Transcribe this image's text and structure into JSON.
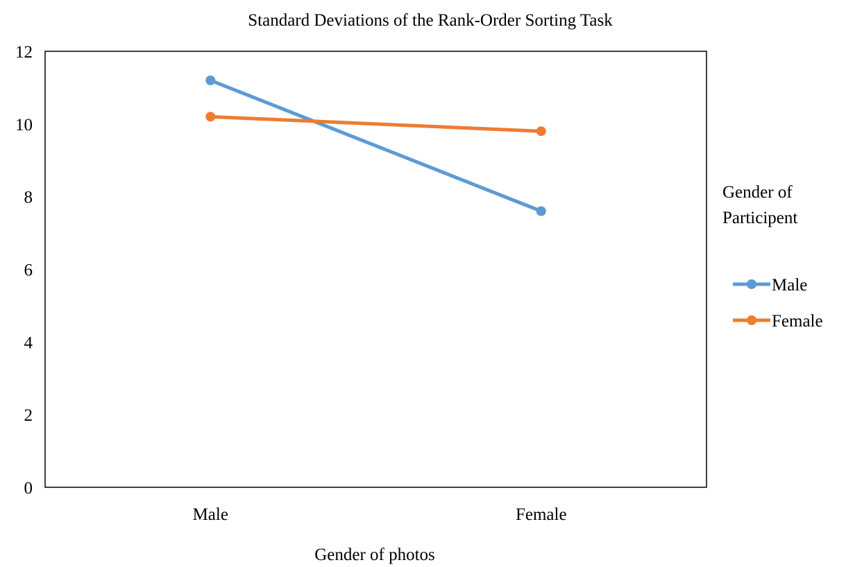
{
  "chart_data": {
    "type": "line",
    "title": "Standard Deviations of the Rank-Order Sorting Task",
    "xlabel": "Gender of photos",
    "ylabel": "",
    "categories": [
      "Male",
      "Female"
    ],
    "ylim": [
      0,
      12
    ],
    "yticks": [
      0,
      2,
      4,
      6,
      8,
      10,
      12
    ],
    "grid": false,
    "legend": {
      "title_lines": [
        "Gender of",
        "Participent"
      ],
      "placement": "right"
    },
    "series": [
      {
        "name": "Male",
        "color": "#5B9BD5",
        "values": [
          11.2,
          7.6
        ]
      },
      {
        "name": "Female",
        "color": "#ED7D31",
        "values": [
          10.2,
          9.8
        ]
      }
    ]
  }
}
